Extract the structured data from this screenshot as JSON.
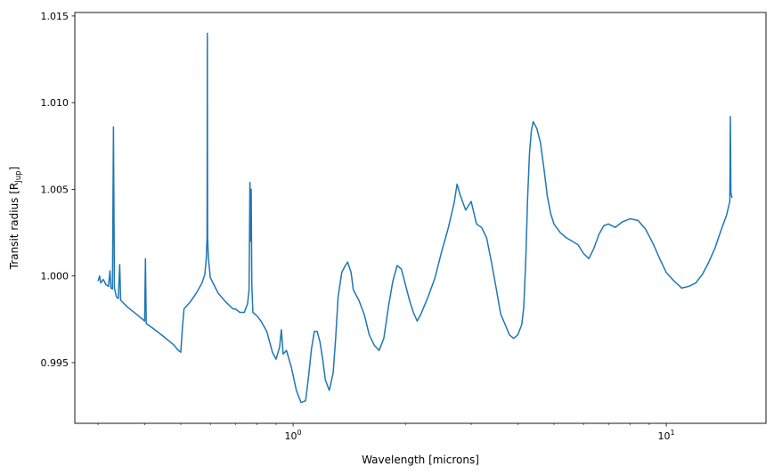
{
  "chart_data": {
    "type": "line",
    "title": "",
    "xlabel": "Wavelength [microns]",
    "ylabel_main": "Transit radius [R",
    "ylabel_sub": "Jup",
    "ylabel_close": "]",
    "xscale": "log",
    "xlim": [
      0.26,
      18.5
    ],
    "ylim": [
      0.9915,
      1.0152
    ],
    "grid": false,
    "line_color": "#1f77b4",
    "x_major_ticks": [
      {
        "value": 1,
        "base": "10",
        "exp": "0"
      },
      {
        "value": 10,
        "base": "10",
        "exp": "1"
      }
    ],
    "x_minor_ticks": [
      0.3,
      0.4,
      0.5,
      0.6,
      0.7,
      0.8,
      0.9,
      2,
      3,
      4,
      5,
      6,
      7,
      8,
      9
    ],
    "y_ticks": [
      "0.995",
      "1.000",
      "1.005",
      "1.010",
      "1.015"
    ],
    "series": [
      {
        "points": [
          [
            0.3,
            0.9997
          ],
          [
            0.303,
            1.0
          ],
          [
            0.305,
            0.9996
          ],
          [
            0.31,
            0.9998
          ],
          [
            0.315,
            0.9995
          ],
          [
            0.32,
            0.9994
          ],
          [
            0.323,
            1.0003
          ],
          [
            0.325,
            0.9993
          ],
          [
            0.328,
            0.99925
          ],
          [
            0.33,
            1.0086
          ],
          [
            0.332,
            0.9993
          ],
          [
            0.336,
            0.9988
          ],
          [
            0.34,
            0.9987
          ],
          [
            0.343,
            1.00065
          ],
          [
            0.345,
            0.9986
          ],
          [
            0.36,
            0.9982
          ],
          [
            0.38,
            0.9978
          ],
          [
            0.4,
            0.9974
          ],
          [
            0.402,
            1.001
          ],
          [
            0.404,
            0.99725
          ],
          [
            0.42,
            0.997
          ],
          [
            0.45,
            0.9965
          ],
          [
            0.48,
            0.996
          ],
          [
            0.49,
            0.99575
          ],
          [
            0.5,
            0.9956
          ],
          [
            0.505,
            0.997
          ],
          [
            0.51,
            0.9981
          ],
          [
            0.53,
            0.9985
          ],
          [
            0.55,
            0.999
          ],
          [
            0.57,
            0.9996
          ],
          [
            0.58,
            1.0001
          ],
          [
            0.585,
            1.001
          ],
          [
            0.588,
            1.0022
          ],
          [
            0.589,
            1.014
          ],
          [
            0.59,
            1.0022
          ],
          [
            0.593,
            1.001
          ],
          [
            0.6,
            0.9999
          ],
          [
            0.63,
            0.999
          ],
          [
            0.66,
            0.9985
          ],
          [
            0.69,
            0.9981
          ],
          [
            0.7,
            0.9981
          ],
          [
            0.72,
            0.9979
          ],
          [
            0.74,
            0.9979
          ],
          [
            0.755,
            0.9984
          ],
          [
            0.762,
            0.9992
          ],
          [
            0.766,
            1.0054
          ],
          [
            0.77,
            1.002
          ],
          [
            0.772,
            1.005
          ],
          [
            0.775,
            0.9995
          ],
          [
            0.78,
            0.9979
          ],
          [
            0.8,
            0.9977
          ],
          [
            0.82,
            0.9974
          ],
          [
            0.85,
            0.9968
          ],
          [
            0.87,
            0.996
          ],
          [
            0.88,
            0.9956
          ],
          [
            0.9,
            0.9952
          ],
          [
            0.92,
            0.9959
          ],
          [
            0.93,
            0.9969
          ],
          [
            0.94,
            0.9955
          ],
          [
            0.96,
            0.9957
          ],
          [
            0.99,
            0.9947
          ],
          [
            1.02,
            0.9934
          ],
          [
            1.05,
            0.9927
          ],
          [
            1.08,
            0.9928
          ],
          [
            1.1,
            0.9942
          ],
          [
            1.12,
            0.9958
          ],
          [
            1.14,
            0.9968
          ],
          [
            1.16,
            0.9968
          ],
          [
            1.18,
            0.9962
          ],
          [
            1.2,
            0.9952
          ],
          [
            1.22,
            0.994
          ],
          [
            1.25,
            0.9934
          ],
          [
            1.28,
            0.9944
          ],
          [
            1.3,
            0.9964
          ],
          [
            1.32,
            0.9988
          ],
          [
            1.35,
            1.0002
          ],
          [
            1.38,
            1.0006
          ],
          [
            1.4,
            1.0008
          ],
          [
            1.43,
            1.0002
          ],
          [
            1.45,
            0.9992
          ],
          [
            1.5,
            0.9986
          ],
          [
            1.55,
            0.9978
          ],
          [
            1.6,
            0.9966
          ],
          [
            1.65,
            0.996
          ],
          [
            1.7,
            0.9957
          ],
          [
            1.75,
            0.9964
          ],
          [
            1.8,
            0.9982
          ],
          [
            1.85,
            0.9997
          ],
          [
            1.9,
            1.0006
          ],
          [
            1.95,
            1.0004
          ],
          [
            2.0,
            0.9995
          ],
          [
            2.05,
            0.9986
          ],
          [
            2.1,
            0.9979
          ],
          [
            2.15,
            0.9974
          ],
          [
            2.2,
            0.9978
          ],
          [
            2.3,
            0.9988
          ],
          [
            2.4,
            0.9999
          ],
          [
            2.5,
            1.0014
          ],
          [
            2.6,
            1.0027
          ],
          [
            2.7,
            1.0042
          ],
          [
            2.75,
            1.0053
          ],
          [
            2.8,
            1.0047
          ],
          [
            2.9,
            1.0038
          ],
          [
            3.0,
            1.0043
          ],
          [
            3.1,
            1.003
          ],
          [
            3.2,
            1.0028
          ],
          [
            3.3,
            1.0022
          ],
          [
            3.4,
            1.0008
          ],
          [
            3.5,
            0.9993
          ],
          [
            3.6,
            0.9978
          ],
          [
            3.7,
            0.9972
          ],
          [
            3.8,
            0.9966
          ],
          [
            3.9,
            0.9964
          ],
          [
            4.0,
            0.9966
          ],
          [
            4.1,
            0.9972
          ],
          [
            4.15,
            0.9982
          ],
          [
            4.2,
            1.0008
          ],
          [
            4.25,
            1.0045
          ],
          [
            4.3,
            1.0071
          ],
          [
            4.35,
            1.0084
          ],
          [
            4.4,
            1.0089
          ],
          [
            4.5,
            1.0085
          ],
          [
            4.6,
            1.0077
          ],
          [
            4.7,
            1.0062
          ],
          [
            4.8,
            1.0046
          ],
          [
            4.9,
            1.0036
          ],
          [
            5.0,
            1.003
          ],
          [
            5.2,
            1.0025
          ],
          [
            5.4,
            1.0022
          ],
          [
            5.6,
            1.002
          ],
          [
            5.8,
            1.0018
          ],
          [
            6.0,
            1.0013
          ],
          [
            6.2,
            1.001
          ],
          [
            6.4,
            1.0016
          ],
          [
            6.6,
            1.0024
          ],
          [
            6.8,
            1.0029
          ],
          [
            7.0,
            1.003
          ],
          [
            7.3,
            1.0028
          ],
          [
            7.6,
            1.0031
          ],
          [
            8.0,
            1.0033
          ],
          [
            8.4,
            1.0032
          ],
          [
            8.8,
            1.0027
          ],
          [
            9.2,
            1.0019
          ],
          [
            9.6,
            1.001
          ],
          [
            10.0,
            1.0002
          ],
          [
            10.5,
            0.9997
          ],
          [
            11.0,
            0.9993
          ],
          [
            11.5,
            0.9994
          ],
          [
            12.0,
            0.9996
          ],
          [
            12.5,
            1.0001
          ],
          [
            13.0,
            1.0008
          ],
          [
            13.5,
            1.0016
          ],
          [
            14.0,
            1.0026
          ],
          [
            14.5,
            1.0035
          ],
          [
            14.8,
            1.0043
          ],
          [
            14.85,
            1.0092
          ],
          [
            14.9,
            1.0048
          ],
          [
            15.0,
            1.0045
          ]
        ]
      }
    ]
  }
}
